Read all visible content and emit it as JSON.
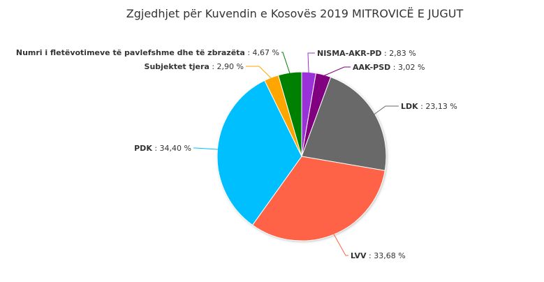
{
  "chart_data": {
    "type": "pie",
    "title": "Zgjedhjet për Kuvendin e Kosovës 2019 MITROVICË E JUGUT",
    "slices": [
      {
        "name": "NISMA-AKR-PD",
        "value": 2.83,
        "label": "2,83 %",
        "color": "#9b30d9"
      },
      {
        "name": "AAK-PSD",
        "value": 3.02,
        "label": "3,02 %",
        "color": "#800080"
      },
      {
        "name": "LDK",
        "value": 23.13,
        "label": "23,13 %",
        "color": "#696969"
      },
      {
        "name": "LVV",
        "value": 33.68,
        "label": "33,68 %",
        "color": "#ff6347"
      },
      {
        "name": "PDK",
        "value": 34.4,
        "label": "34,40 %",
        "color": "#00bfff"
      },
      {
        "name": "Subjektet tjera",
        "value": 2.9,
        "label": "2,90 %",
        "color": "#ffa500"
      },
      {
        "name": "Numri i fletëvotimeve të pavlefshme dhe të zbrazëta",
        "value": 4.67,
        "label": "4,67 %",
        "color": "#008000"
      }
    ]
  }
}
